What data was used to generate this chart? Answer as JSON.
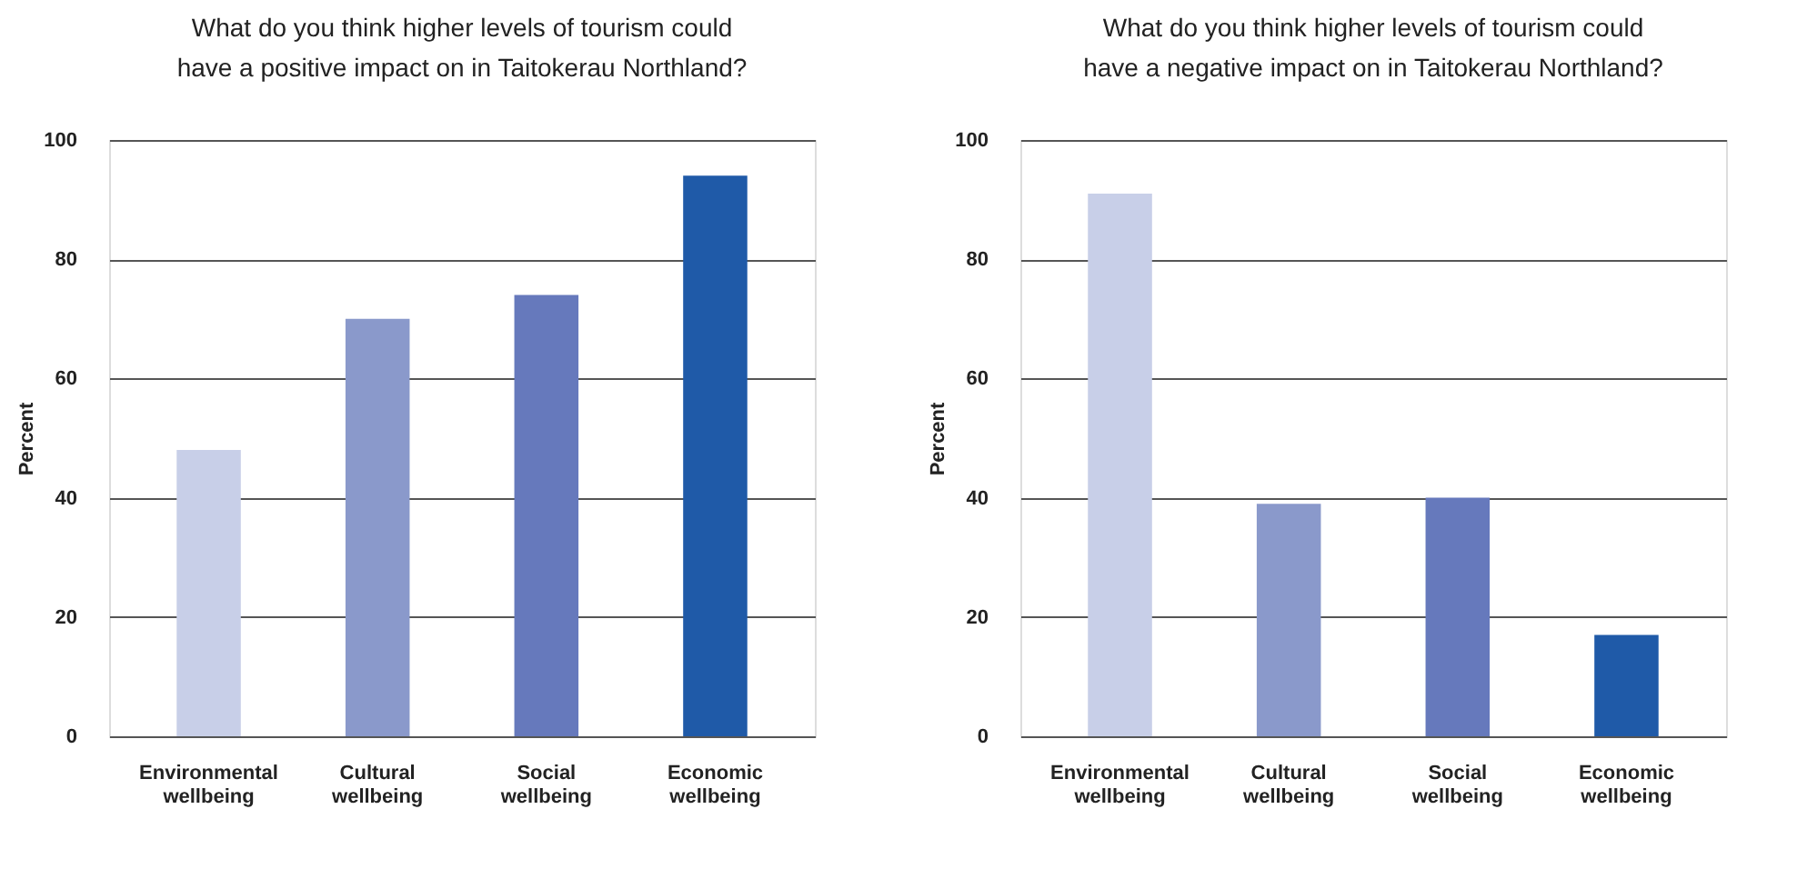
{
  "chart_data": [
    {
      "type": "bar",
      "title": "What do you think higher levels of tourism could have a positive impact on in Taitokerau Northland?",
      "ylabel": "Percent",
      "categories": [
        "Environmental wellbeing",
        "Cultural wellbeing",
        "Social wellbeing",
        "Economic wellbeing"
      ],
      "values": [
        48,
        70,
        74,
        94
      ],
      "colors": [
        "#c8cfe8",
        "#8a99cb",
        "#6679bc",
        "#1f5aa8"
      ],
      "ylim": [
        0,
        100
      ],
      "yticks": [
        0,
        20,
        40,
        60,
        80,
        100
      ],
      "grid": "y",
      "legend": false
    },
    {
      "type": "bar",
      "title": "What do you think higher levels of tourism could have a negative impact on in Taitokerau Northland?",
      "ylabel": "Percent",
      "categories": [
        "Environmental wellbeing",
        "Cultural wellbeing",
        "Social wellbeing",
        "Economic wellbeing"
      ],
      "values": [
        91,
        39,
        40,
        17
      ],
      "colors": [
        "#c8cfe8",
        "#8a99cb",
        "#6679bc",
        "#1f5aa8"
      ],
      "ylim": [
        0,
        100
      ],
      "yticks": [
        0,
        20,
        40,
        60,
        80,
        100
      ],
      "grid": "y",
      "legend": false
    }
  ]
}
